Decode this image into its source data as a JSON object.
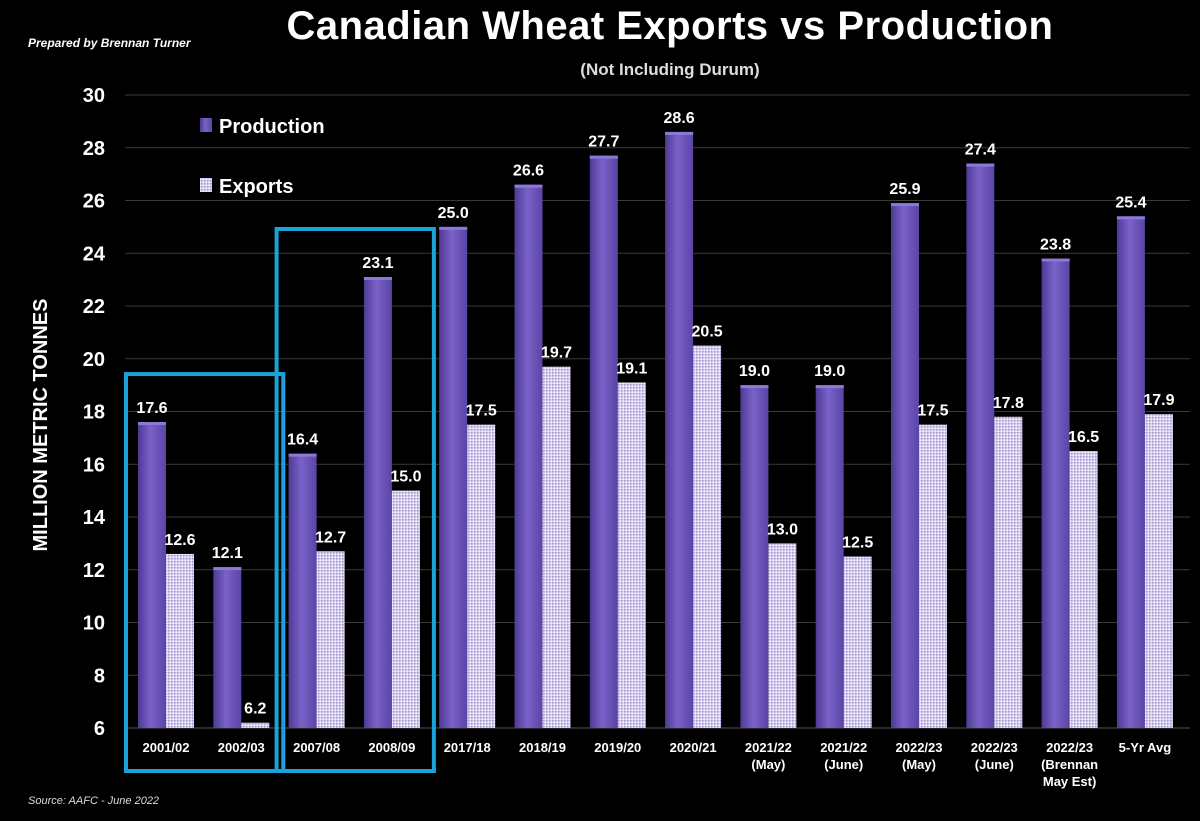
{
  "header": {
    "prepared_by": "Prepared by Brennan Turner",
    "source": "Source: AAFC -  June 2022"
  },
  "colors": {
    "production": "#6b52b8",
    "exports": "#c9bfe6",
    "highlight_box": "#1aa3d9",
    "gridline": "#3a3a3a"
  },
  "chart_data": {
    "type": "bar",
    "title": "Canadian Wheat Exports vs Production",
    "subtitle": "(Not Including Durum)",
    "xlabel": "",
    "ylabel": "MILLION METRIC TONNES",
    "ylim": [
      6,
      30
    ],
    "yticks": [
      6,
      8,
      10,
      12,
      14,
      16,
      18,
      20,
      22,
      24,
      26,
      28,
      30
    ],
    "grid": true,
    "legend_position": "top-left",
    "categories": [
      [
        "2001/02"
      ],
      [
        "2002/03"
      ],
      [
        "2007/08"
      ],
      [
        "2008/09"
      ],
      [
        "2017/18"
      ],
      [
        "2018/19"
      ],
      [
        "2019/20"
      ],
      [
        "2020/21"
      ],
      [
        "2021/22",
        "(May)"
      ],
      [
        "2021/22",
        "(June)"
      ],
      [
        "2022/23",
        "(May)"
      ],
      [
        "2022/23",
        "(June)"
      ],
      [
        "2022/23",
        "(Brennan",
        "May Est)"
      ],
      [
        "5-Yr Avg"
      ]
    ],
    "series": [
      {
        "name": "Production",
        "values": [
          17.6,
          12.1,
          16.4,
          23.1,
          25.0,
          26.6,
          27.7,
          28.6,
          19.0,
          19.0,
          25.9,
          27.4,
          23.8,
          25.4
        ]
      },
      {
        "name": "Exports",
        "values": [
          12.6,
          6.2,
          12.7,
          15.0,
          17.5,
          19.7,
          19.1,
          20.5,
          13.0,
          12.5,
          17.5,
          17.8,
          16.5,
          17.9
        ]
      }
    ],
    "highlight_groups": [
      [
        0,
        1
      ],
      [
        2,
        3
      ]
    ]
  }
}
